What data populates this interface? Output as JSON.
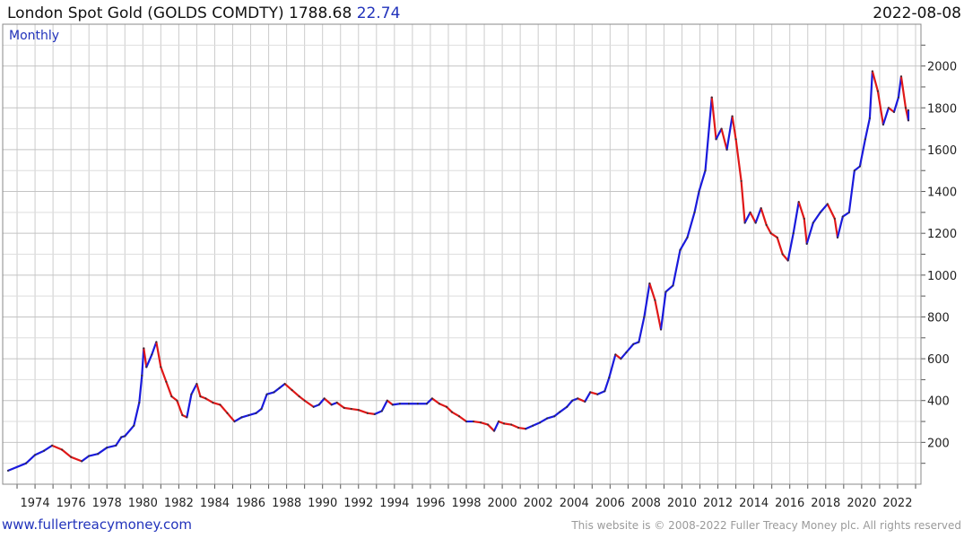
{
  "header": {
    "title": "London Spot Gold (GOLDS COMDTY) 1788.68",
    "change": "22.74",
    "date": "2022-08-08",
    "frequency": "Monthly"
  },
  "footer": {
    "site": "www.fullertreacymoney.com",
    "copyright": "This website is © 2008-2022 Fuller Treacy Money plc. All rights reserved"
  },
  "colors": {
    "up": "#1a1adc",
    "down": "#e01818",
    "grid": "#cccccc",
    "axis": "#555555"
  },
  "chart_data": {
    "type": "line",
    "title": "London Spot Gold (GOLDS COMDTY) 1788.68 22.74",
    "xlabel": "",
    "ylabel": "",
    "xlim": [
      1972.2,
      2023.3
    ],
    "ylim": [
      0,
      2200
    ],
    "y_ticks": [
      200,
      400,
      600,
      800,
      1000,
      1200,
      1400,
      1600,
      1800,
      2000
    ],
    "x_ticks": [
      "1974",
      "1976",
      "1978",
      "1980",
      "1982",
      "1984",
      "1986",
      "1988",
      "1990",
      "1992",
      "1994",
      "1996",
      "1998",
      "2000",
      "2002",
      "2004",
      "2006",
      "2008",
      "2010",
      "2012",
      "2014",
      "2016",
      "2018",
      "2020",
      "2022"
    ],
    "grid": true,
    "series": [
      {
        "values": [
          [
            1972.5,
            65
          ],
          [
            1973.5,
            100
          ],
          [
            1974.0,
            140
          ],
          [
            1974.5,
            160
          ],
          [
            1974.95,
            185
          ],
          [
            1975.5,
            165
          ],
          [
            1976.0,
            130
          ],
          [
            1976.6,
            110
          ],
          [
            1977.0,
            135
          ],
          [
            1977.5,
            145
          ],
          [
            1978.0,
            175
          ],
          [
            1978.5,
            185
          ],
          [
            1978.8,
            225
          ],
          [
            1979.0,
            230
          ],
          [
            1979.5,
            280
          ],
          [
            1979.8,
            390
          ],
          [
            1979.95,
            520
          ],
          [
            1980.05,
            650
          ],
          [
            1980.2,
            560
          ],
          [
            1980.5,
            620
          ],
          [
            1980.75,
            680
          ],
          [
            1981.0,
            560
          ],
          [
            1981.3,
            490
          ],
          [
            1981.6,
            420
          ],
          [
            1981.9,
            400
          ],
          [
            1982.2,
            330
          ],
          [
            1982.45,
            320
          ],
          [
            1982.7,
            430
          ],
          [
            1983.0,
            480
          ],
          [
            1983.2,
            420
          ],
          [
            1983.5,
            410
          ],
          [
            1983.9,
            390
          ],
          [
            1984.3,
            380
          ],
          [
            1984.7,
            340
          ],
          [
            1985.1,
            300
          ],
          [
            1985.5,
            320
          ],
          [
            1985.9,
            330
          ],
          [
            1986.3,
            340
          ],
          [
            1986.6,
            360
          ],
          [
            1986.9,
            430
          ],
          [
            1987.3,
            440
          ],
          [
            1987.6,
            460
          ],
          [
            1987.9,
            480
          ],
          [
            1988.3,
            450
          ],
          [
            1988.7,
            420
          ],
          [
            1989.0,
            400
          ],
          [
            1989.5,
            370
          ],
          [
            1989.8,
            380
          ],
          [
            1990.1,
            410
          ],
          [
            1990.5,
            380
          ],
          [
            1990.8,
            390
          ],
          [
            1991.2,
            365
          ],
          [
            1991.6,
            360
          ],
          [
            1992.0,
            355
          ],
          [
            1992.5,
            340
          ],
          [
            1992.9,
            335
          ],
          [
            1993.3,
            350
          ],
          [
            1993.6,
            400
          ],
          [
            1993.9,
            380
          ],
          [
            1994.3,
            385
          ],
          [
            1994.8,
            385
          ],
          [
            1995.3,
            385
          ],
          [
            1995.8,
            385
          ],
          [
            1996.1,
            410
          ],
          [
            1996.5,
            385
          ],
          [
            1996.9,
            370
          ],
          [
            1997.2,
            345
          ],
          [
            1997.6,
            325
          ],
          [
            1998.0,
            300
          ],
          [
            1998.4,
            300
          ],
          [
            1998.8,
            295
          ],
          [
            1999.2,
            285
          ],
          [
            1999.55,
            255
          ],
          [
            1999.8,
            300
          ],
          [
            2000.1,
            290
          ],
          [
            2000.5,
            285
          ],
          [
            2000.9,
            270
          ],
          [
            2001.3,
            265
          ],
          [
            2001.7,
            280
          ],
          [
            2002.1,
            295
          ],
          [
            2002.5,
            315
          ],
          [
            2002.9,
            325
          ],
          [
            2003.2,
            345
          ],
          [
            2003.6,
            370
          ],
          [
            2003.9,
            400
          ],
          [
            2004.2,
            410
          ],
          [
            2004.6,
            395
          ],
          [
            2004.9,
            440
          ],
          [
            2005.3,
            430
          ],
          [
            2005.7,
            445
          ],
          [
            2005.95,
            510
          ],
          [
            2006.3,
            620
          ],
          [
            2006.6,
            600
          ],
          [
            2006.9,
            630
          ],
          [
            2007.3,
            670
          ],
          [
            2007.6,
            680
          ],
          [
            2007.9,
            800
          ],
          [
            2008.2,
            960
          ],
          [
            2008.5,
            880
          ],
          [
            2008.83,
            740
          ],
          [
            2009.1,
            920
          ],
          [
            2009.5,
            950
          ],
          [
            2009.9,
            1120
          ],
          [
            2010.3,
            1180
          ],
          [
            2010.7,
            1300
          ],
          [
            2010.95,
            1400
          ],
          [
            2011.3,
            1500
          ],
          [
            2011.66,
            1850
          ],
          [
            2011.9,
            1650
          ],
          [
            2012.2,
            1700
          ],
          [
            2012.5,
            1600
          ],
          [
            2012.8,
            1760
          ],
          [
            2013.0,
            1650
          ],
          [
            2013.3,
            1450
          ],
          [
            2013.5,
            1250
          ],
          [
            2013.8,
            1300
          ],
          [
            2014.1,
            1250
          ],
          [
            2014.4,
            1320
          ],
          [
            2014.7,
            1240
          ],
          [
            2014.95,
            1200
          ],
          [
            2015.3,
            1180
          ],
          [
            2015.6,
            1100
          ],
          [
            2015.9,
            1070
          ],
          [
            2016.2,
            1200
          ],
          [
            2016.5,
            1350
          ],
          [
            2016.8,
            1270
          ],
          [
            2016.95,
            1150
          ],
          [
            2017.3,
            1250
          ],
          [
            2017.7,
            1300
          ],
          [
            2018.1,
            1340
          ],
          [
            2018.5,
            1270
          ],
          [
            2018.66,
            1180
          ],
          [
            2018.95,
            1280
          ],
          [
            2019.3,
            1300
          ],
          [
            2019.6,
            1500
          ],
          [
            2019.9,
            1520
          ],
          [
            2020.2,
            1650
          ],
          [
            2020.45,
            1750
          ],
          [
            2020.6,
            1975
          ],
          [
            2020.9,
            1880
          ],
          [
            2021.2,
            1720
          ],
          [
            2021.5,
            1800
          ],
          [
            2021.8,
            1780
          ],
          [
            2022.05,
            1850
          ],
          [
            2022.2,
            1950
          ],
          [
            2022.45,
            1800
          ],
          [
            2022.6,
            1740
          ],
          [
            2022.6,
            1788.68
          ]
        ]
      }
    ]
  }
}
